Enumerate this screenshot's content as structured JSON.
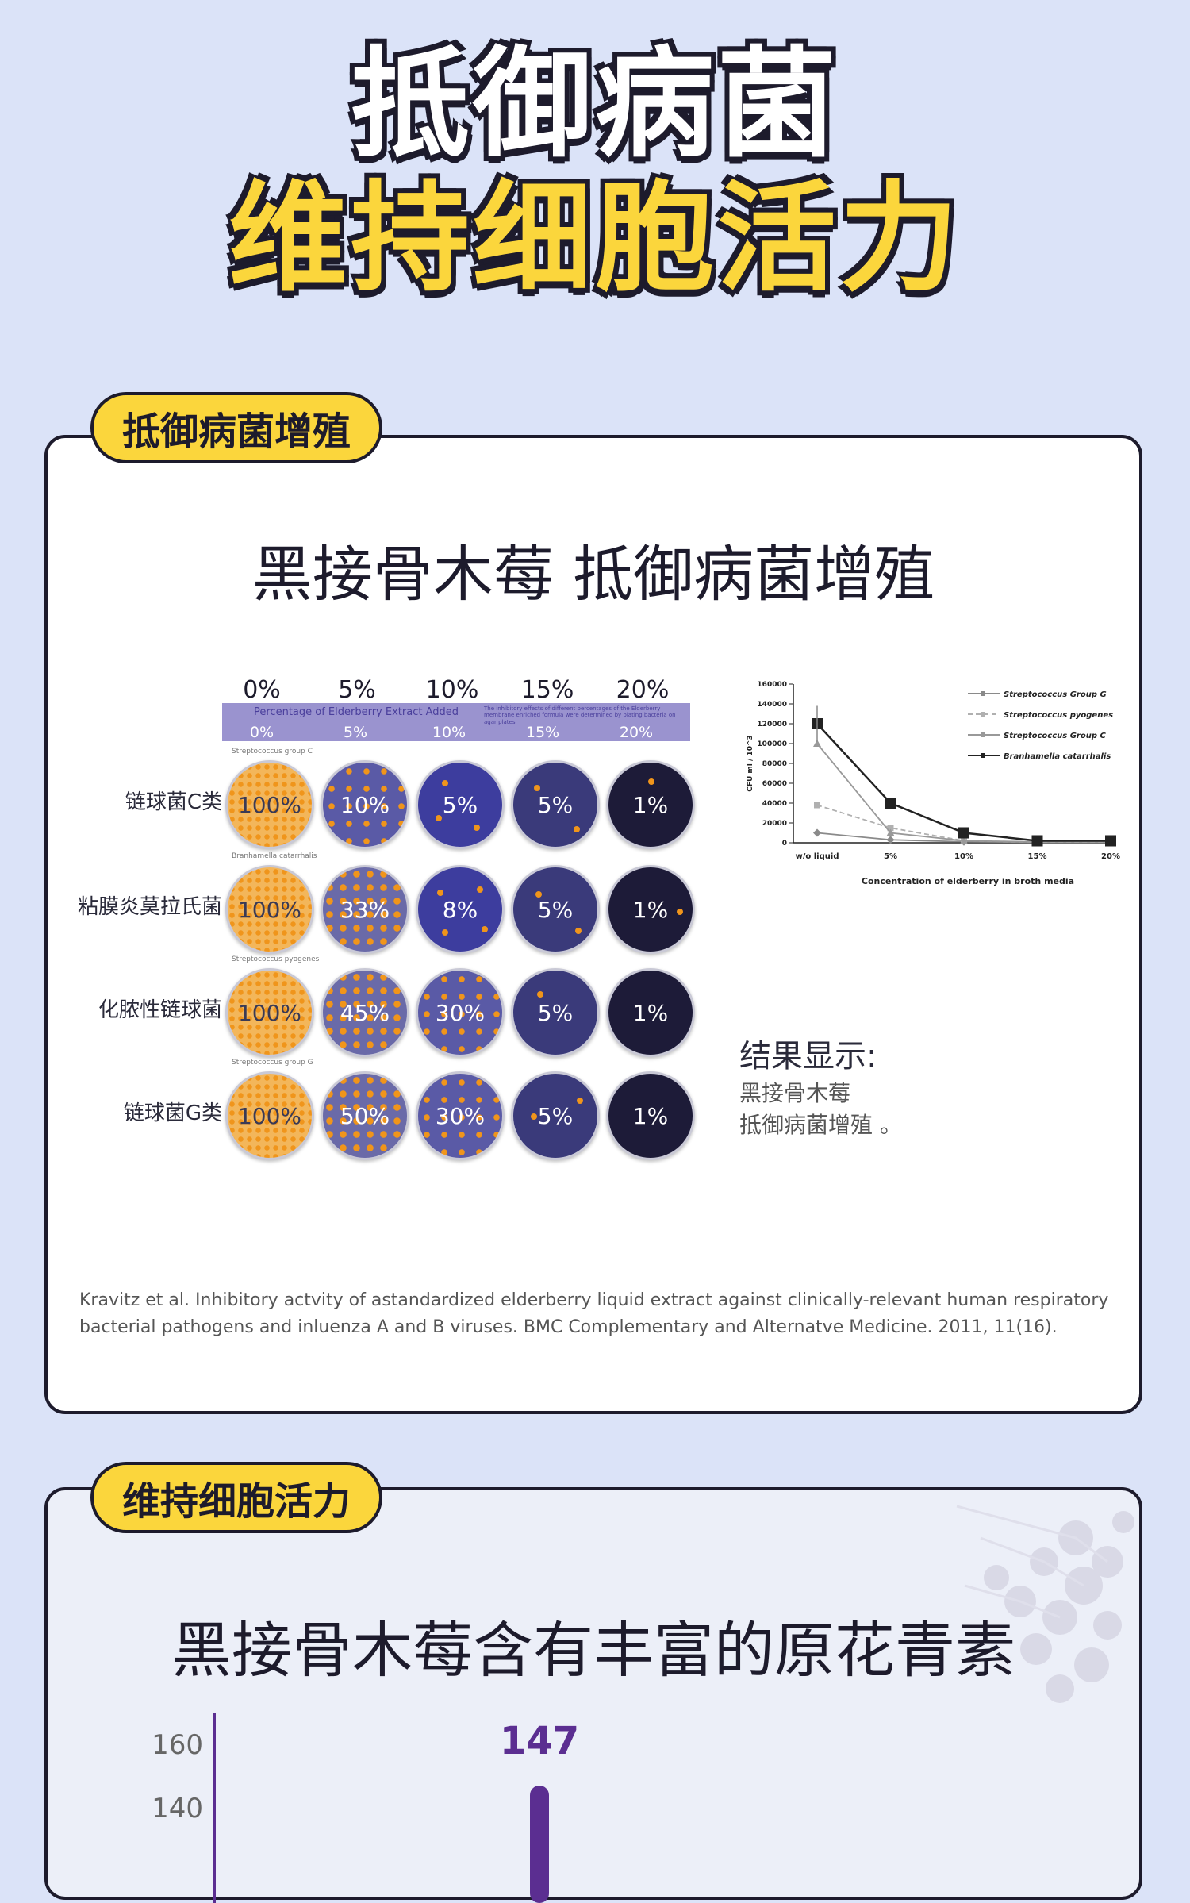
{
  "hero": {
    "line1": "抵御病菌",
    "line2": "维持细胞活力"
  },
  "section1": {
    "tab": "抵御病菌增殖",
    "title": "黑接骨木莓 抵御病菌增殖",
    "petri": {
      "top_percentages": [
        "0%",
        "5%",
        "10%",
        "15%",
        "20%"
      ],
      "band_text": "Percentage of Elderberry Extract Added",
      "band_note": "The inhibitory effects of different percentages of the Elderberry membrane enriched formula were determined by plating bacteria on agar plates.",
      "band_percentages": [
        "0%",
        "5%",
        "10%",
        "15%",
        "20%"
      ],
      "rows": [
        {
          "label": "链球菌C类",
          "sub": "Streptococcus group C",
          "values": [
            "100%",
            "10%",
            "5%",
            "5%",
            "1%"
          ]
        },
        {
          "label": "粘膜炎莫拉氏菌",
          "sub": "Branhamella catarrhalis",
          "values": [
            "100%",
            "33%",
            "8%",
            "5%",
            "1%"
          ]
        },
        {
          "label": "化脓性链球菌",
          "sub": "Streptococcus pyogenes",
          "values": [
            "100%",
            "45%",
            "30%",
            "5%",
            "1%"
          ]
        },
        {
          "label": "链球菌G类",
          "sub": "Streptococcus group G",
          "values": [
            "100%",
            "50%",
            "30%",
            "5%",
            "1%"
          ]
        }
      ]
    },
    "result_title": "结果显示:",
    "result_line1": "黑接骨木莓",
    "result_line2": "抵御病菌增殖 。",
    "citation": "Kravitz et al. Inhibitory actvity of astandardized elderberry liquid extract against clinically-relevant human respiratory bacterial pathogens and inluenza A and B viruses. BMC Complementary and Alternatve Medicine. 2011, 11(16)."
  },
  "section2": {
    "tab": "维持细胞活力",
    "title": "黑接骨木莓含有丰富的原花青素"
  },
  "chart_data": [
    {
      "type": "line",
      "xlabel": "Concentration of elderberry in broth media",
      "ylabel": "CFU ml / 10^3",
      "categories": [
        "w/o liquid",
        "5%",
        "10%",
        "15%",
        "20%"
      ],
      "ylim": [
        0,
        160000
      ],
      "yticks": [
        0,
        20000,
        40000,
        60000,
        80000,
        100000,
        120000,
        140000,
        160000
      ],
      "series": [
        {
          "name": "Streptococcus Group G",
          "values": [
            10000,
            3000,
            1000,
            500,
            500
          ],
          "color": "#8a8a8a",
          "dash": "none",
          "marker": "diamond"
        },
        {
          "name": "Streptococcus pyogenes",
          "values": [
            38000,
            15000,
            2000,
            800,
            800
          ],
          "color": "#b0b0b0",
          "dash": "6,4",
          "marker": "square"
        },
        {
          "name": "Streptococcus Group C",
          "values": [
            100000,
            10000,
            2000,
            1000,
            1000
          ],
          "color": "#999999",
          "dash": "none",
          "marker": "triangle"
        },
        {
          "name": "Branhamella catarrhalis",
          "values": [
            120000,
            40000,
            10000,
            2000,
            2000
          ],
          "color": "#222222",
          "dash": "none",
          "marker": "square-big"
        }
      ],
      "grid": false,
      "legend": "top-right"
    },
    {
      "type": "bar",
      "categories": [
        ""
      ],
      "values": [
        147
      ],
      "value_labels": [
        "147"
      ],
      "yticks_visible": [
        160,
        140
      ],
      "bar_color": "#5b2e91"
    }
  ],
  "colors": {
    "accent": "#fbd63c",
    "outline": "#1d1b2c",
    "page_bg": "#dbe3f8",
    "bar": "#5b2e91"
  }
}
